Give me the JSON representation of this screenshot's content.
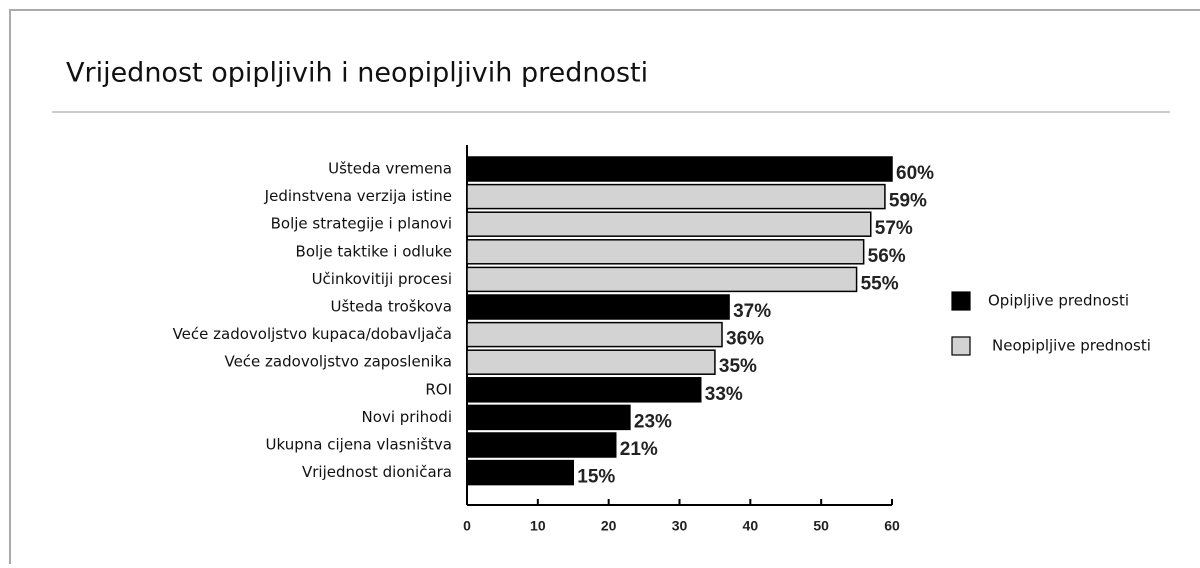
{
  "chart_data": {
    "type": "bar",
    "orientation": "horizontal",
    "title": "Vrijednost opipljivih i neopipljivih prednosti",
    "categories": [
      "Ušteda vremena",
      "Jedinstvena verzija istine",
      "Bolje strategije i planovi",
      "Bolje taktike i odluke",
      "Učinkovitiji procesi",
      "Ušteda troškova",
      "Veće zadovoljstvo kupaca/dobavljača",
      "Veće zadovoljstvo zaposlenika",
      "ROI",
      "Novi prihodi",
      "Ukupna cijena vlasništva",
      "Vrijednost dioničara"
    ],
    "series": [
      {
        "name": "Opipljive prednosti",
        "color": "#000000",
        "values": [
          60,
          null,
          null,
          null,
          null,
          37,
          null,
          null,
          33,
          23,
          21,
          15
        ],
        "value_labels": [
          "60%",
          null,
          null,
          null,
          null,
          "37%",
          null,
          null,
          "33%",
          "23%",
          "21%",
          "15%"
        ]
      },
      {
        "name": "Neopipljive prednosti",
        "color": "#d3d3d3",
        "values": [
          null,
          59,
          57,
          56,
          55,
          null,
          36,
          35,
          null,
          null,
          null,
          null
        ],
        "value_labels": [
          null,
          "59%",
          "57%",
          "56%",
          "55%",
          null,
          "36%",
          "35%",
          null,
          null,
          null,
          null
        ]
      }
    ],
    "xlim": [
      0,
      60
    ],
    "xticks": [
      0,
      10,
      20,
      30,
      40,
      50,
      60
    ],
    "legend": "right"
  }
}
